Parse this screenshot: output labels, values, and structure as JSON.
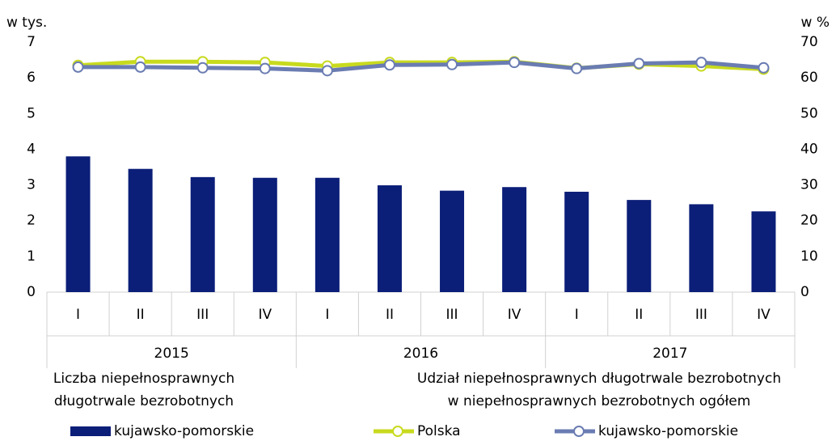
{
  "chart_data": {
    "type": "bar_line",
    "y_unit": "w tys.",
    "y2_unit": "w %",
    "categories": [
      "I",
      "II",
      "III",
      "IV",
      "I",
      "II",
      "III",
      "IV",
      "I",
      "II",
      "III",
      "IV"
    ],
    "groups": [
      "2015",
      "2016",
      "2017"
    ],
    "ylim": [
      0,
      7
    ],
    "yticks": [
      0,
      1,
      2,
      3,
      4,
      5,
      6,
      7
    ],
    "y2lim": [
      0,
      70
    ],
    "y2ticks": [
      0,
      10,
      20,
      30,
      40,
      50,
      60,
      70
    ],
    "legend_titles": [
      [
        "Liczba niepełnosprawnych",
        "długotrwale bezrobotnych"
      ],
      [
        "Udział niepełnosprawnych długotrwale bezrobotnych",
        "w niepełnosprawnych bezrobotnych ogółem"
      ]
    ],
    "series": [
      {
        "name": "kujawsko-pomorskie",
        "type": "bar",
        "color": "#0b1e78",
        "values": [
          3.8,
          3.45,
          3.22,
          3.2,
          3.2,
          2.99,
          2.84,
          2.94,
          2.81,
          2.58,
          2.46,
          2.26
        ]
      },
      {
        "name": "Polska",
        "type": "line",
        "axis": "y2",
        "color": "#c8da1e",
        "values": [
          63.5,
          64.5,
          64.5,
          64.3,
          63.3,
          64.3,
          64.3,
          64.5,
          62.7,
          63.8,
          63.3,
          62.4
        ]
      },
      {
        "name": "kujawsko-pomorskie",
        "type": "line",
        "axis": "y2",
        "color": "#6a7cb2",
        "values": [
          63.0,
          63.0,
          62.8,
          62.6,
          62.0,
          63.6,
          63.7,
          64.3,
          62.6,
          64.0,
          64.3,
          62.8
        ]
      }
    ]
  }
}
